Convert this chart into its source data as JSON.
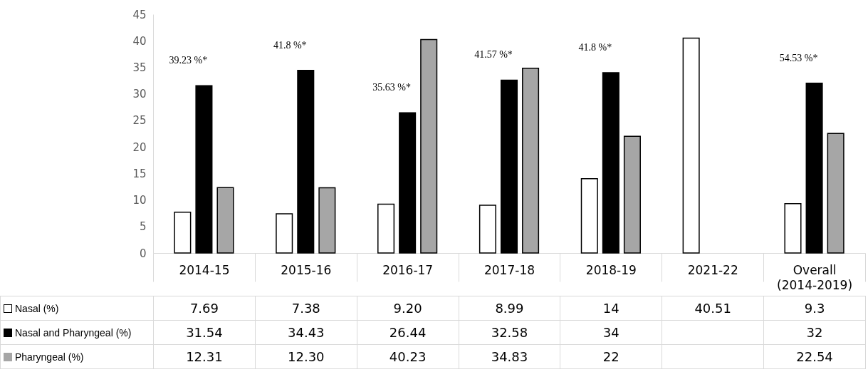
{
  "chart_data": {
    "type": "bar",
    "categories": [
      "2014-15",
      "2015-16",
      "2016-17",
      "2017-18",
      "2018-19",
      "2021-22",
      "Overall (2014-2019)"
    ],
    "series": [
      {
        "name": "Nasal (%)",
        "color": "#ffffff",
        "values": [
          7.69,
          7.38,
          9.2,
          8.99,
          14,
          40.51,
          9.3
        ],
        "value_labels": [
          "7.69",
          "7.38",
          "9.20",
          "8.99",
          "14",
          "40.51",
          "9.3"
        ]
      },
      {
        "name": "Nasal and Pharyngeal (%)",
        "color": "#000000",
        "values": [
          31.54,
          34.43,
          26.44,
          32.58,
          34,
          null,
          32
        ],
        "value_labels": [
          "31.54",
          "34.43",
          "26.44",
          "32.58",
          "34",
          null,
          "32"
        ]
      },
      {
        "name": "Pharyngeal (%)",
        "color": "#a6a6a6",
        "values": [
          12.31,
          12.3,
          40.23,
          34.83,
          22,
          null,
          22.54
        ],
        "value_labels": [
          "12.31",
          "12.30",
          "40.23",
          "34.83",
          "22",
          null,
          "22.54"
        ]
      }
    ],
    "ylim": [
      0,
      45
    ],
    "yticks": [
      0,
      5,
      10,
      15,
      20,
      25,
      30,
      35,
      40,
      45
    ],
    "legend": "bottom left",
    "annotations": [
      "39.23 %*",
      "41.8 %*",
      "35.63 %*",
      "41.57 %*",
      "41.8 %*",
      "54.53 %*"
    ]
  }
}
